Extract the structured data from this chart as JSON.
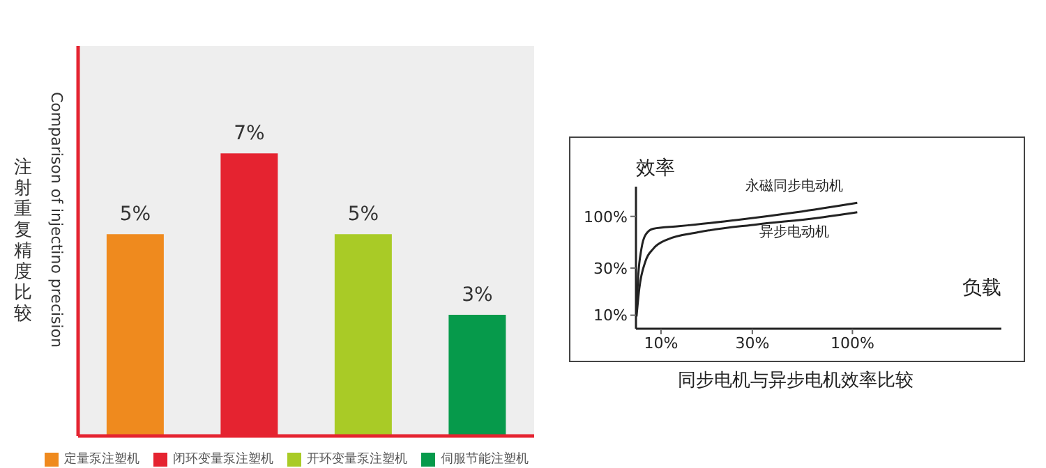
{
  "chart_data": [
    {
      "type": "bar",
      "ylabel": "注射重复精度比较",
      "annotations": [
        "Comparison of injectino precision"
      ],
      "categories": [
        null,
        null,
        null,
        null
      ],
      "stacked": true,
      "legend": "bottom",
      "tick_labels": false,
      "series": [
        {
          "name": "定量泵注塑机",
          "color": "#ef8a1e",
          "values": [
            5,
            null,
            null,
            null
          ],
          "value_labels": [
            "5%",
            null,
            null,
            null
          ]
        },
        {
          "name": "闭环变量泵注塑机",
          "color": "#e52330",
          "values": [
            null,
            7,
            null,
            null
          ],
          "value_labels": [
            null,
            "7%",
            null,
            null
          ]
        },
        {
          "name": "开环变量泵注塑机",
          "color": "#a9cb26",
          "values": [
            null,
            null,
            5,
            null
          ],
          "value_labels": [
            null,
            null,
            "5%",
            null
          ]
        },
        {
          "name": "伺服节能注塑机",
          "color": "#069a4b",
          "values": [
            null,
            null,
            null,
            3
          ],
          "value_labels": [
            null,
            null,
            null,
            "3%"
          ]
        }
      ]
    },
    {
      "type": "line",
      "title": "同步电机与异步电机效率比较",
      "xlabel": "负载",
      "ylabel": "效率",
      "log": "xy",
      "xlim": [
        7.4,
        600
      ],
      "ylim": [
        7.3,
        200
      ],
      "xticks": [
        {
          "value": 10,
          "label": "10%"
        },
        {
          "value": 30,
          "label": "30%"
        },
        {
          "value": 100,
          "label": "100%"
        }
      ],
      "yticks": [
        {
          "value": 10,
          "label": "10%"
        },
        {
          "value": 30,
          "label": "30%"
        },
        {
          "value": 100,
          "label": "100%"
        }
      ],
      "series": [
        {
          "name": "永磁同步电动机",
          "color": "#222222",
          "x": [
            7.45,
            7.6,
            7.9,
            8.3,
            9.1,
            12.4,
            25.1,
            51,
            106
          ],
          "values": [
            11.2,
            24.6,
            46.9,
            65,
            75,
            79.5,
            92,
            110,
            137
          ]
        },
        {
          "name": "异步电动机",
          "color": "#222222",
          "x": [
            7.45,
            7.7,
            8.3,
            9.1,
            10.7,
            15.6,
            31.8,
            64.6,
            106
          ],
          "values": [
            9.7,
            18.5,
            35.2,
            46.9,
            58,
            69,
            83,
            96,
            110
          ]
        }
      ]
    }
  ]
}
